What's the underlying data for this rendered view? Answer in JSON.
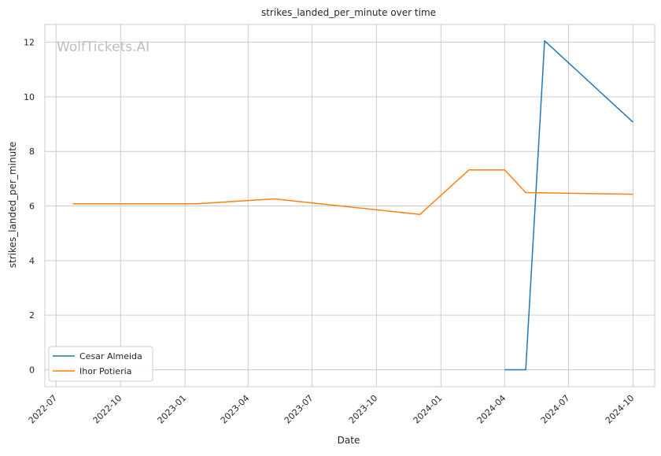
{
  "chart_data": {
    "type": "line",
    "title": "strikes_landed_per_minute over time",
    "xlabel": "Date",
    "ylabel": "strikes_landed_per_minute",
    "watermark": "WolfTickets.AI",
    "x_ticks": [
      "2022-07",
      "2022-10",
      "2023-01",
      "2023-04",
      "2023-07",
      "2023-10",
      "2024-01",
      "2024-04",
      "2024-07",
      "2024-10"
    ],
    "y_ticks": [
      0,
      2,
      4,
      6,
      8,
      10,
      12
    ],
    "xlim": [
      "2022-06-15",
      "2024-11-01"
    ],
    "ylim": [
      -0.62,
      12.65
    ],
    "grid": true,
    "legend_position": "lower-left",
    "series": [
      {
        "name": "Cesar Almeida",
        "color": "#1f77b4",
        "points": [
          {
            "x": "2024-04-01",
            "y": 0.0
          },
          {
            "x": "2024-05-01",
            "y": 0.0
          },
          {
            "x": "2024-05-28",
            "y": 12.05
          },
          {
            "x": "2024-10-01",
            "y": 9.07
          }
        ]
      },
      {
        "name": "Ihor Potieria",
        "color": "#ff7f0e",
        "points": [
          {
            "x": "2022-07-25",
            "y": 6.08
          },
          {
            "x": "2023-01-18",
            "y": 6.08
          },
          {
            "x": "2023-05-08",
            "y": 6.26
          },
          {
            "x": "2023-12-02",
            "y": 5.69
          },
          {
            "x": "2024-02-10",
            "y": 7.32
          },
          {
            "x": "2024-04-01",
            "y": 7.32
          },
          {
            "x": "2024-05-01",
            "y": 6.49
          },
          {
            "x": "2024-10-01",
            "y": 6.43
          }
        ]
      }
    ]
  }
}
